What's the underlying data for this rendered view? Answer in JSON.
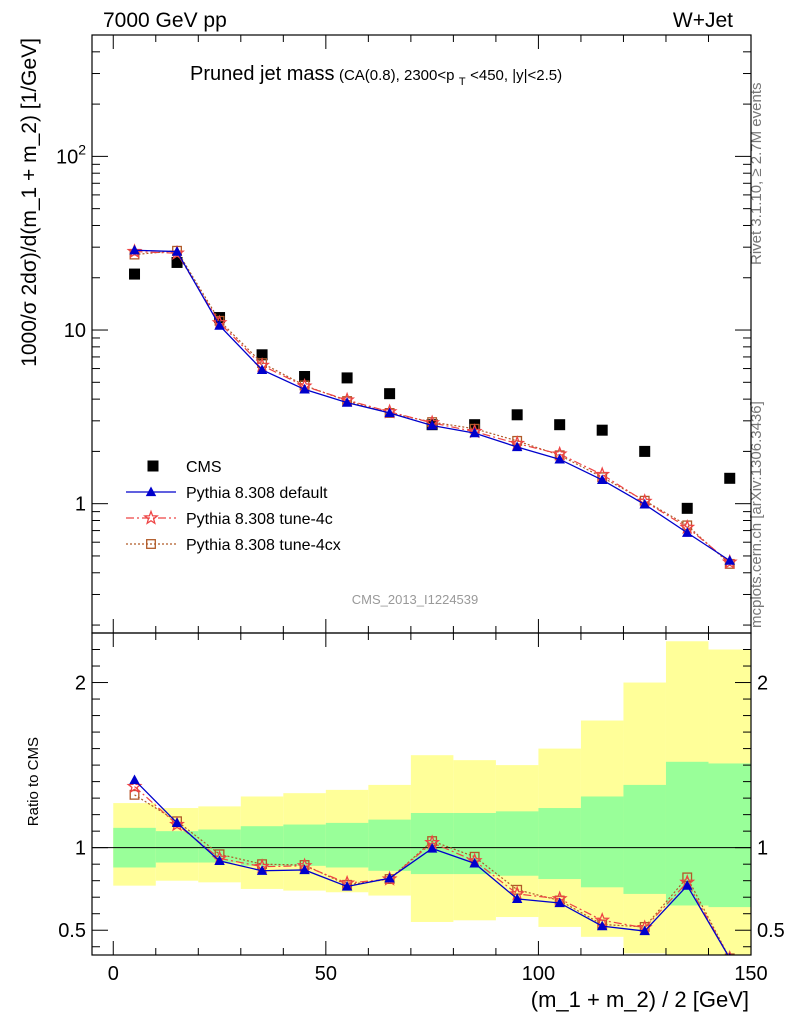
{
  "header": {
    "left": "7000 GeV pp",
    "right": "W+Jet"
  },
  "title": {
    "main": "Pruned jet mass",
    "sub_a": "(CA(0.8), 2300<p",
    "sub_sub": "T",
    "sub_b": "<450, |y|<2.5)"
  },
  "side": {
    "rivet": "Rivet 3.1.10, ≥ 2.7M events",
    "mcplots": "mcplots.cern.ch [arXiv:1306.3436]"
  },
  "analysis_id": "CMS_2013_I1224539",
  "colors": {
    "cms": "#000000",
    "default": "#0000cc",
    "tune4c": "#ee4444",
    "tune4cx": "#b05a28",
    "band_inner": "#99ff99",
    "band_outer": "#ffff99"
  },
  "chart_data": [
    {
      "type": "scatter",
      "panel": "main",
      "ylabel": "1000/σ 2dσ)/d(m_1 + m_2) [1/GeV]",
      "yscale": "log",
      "ylim": [
        0.18,
        500
      ],
      "xlim": [
        -5,
        150
      ],
      "yticks": [
        {
          "value": 100,
          "base": "10",
          "exp": "2"
        },
        {
          "value": 10,
          "base": "10",
          "exp": ""
        },
        {
          "value": 1,
          "base": "1",
          "exp": ""
        }
      ],
      "legend_position": "center-left",
      "legend": [
        {
          "key": "cms",
          "label": "CMS"
        },
        {
          "key": "default",
          "label": "Pythia 8.308 default"
        },
        {
          "key": "tune4c",
          "label": "Pythia 8.308 tune-4c"
        },
        {
          "key": "tune4cx",
          "label": "Pythia 8.308 tune-4cx"
        }
      ],
      "x": [
        5,
        15,
        25,
        35,
        45,
        55,
        65,
        75,
        85,
        95,
        105,
        115,
        125,
        135,
        145
      ],
      "series": [
        {
          "key": "cms",
          "values": [
            21,
            24.5,
            11.8,
            7.2,
            5.4,
            5.3,
            4.3,
            2.85,
            2.85,
            3.25,
            2.85,
            2.65,
            2.0,
            0.94,
            1.4
          ]
        },
        {
          "key": "default",
          "values": [
            28.8,
            28.3,
            10.6,
            5.9,
            4.55,
            3.82,
            3.33,
            2.82,
            2.55,
            2.12,
            1.8,
            1.37,
            0.99,
            0.68,
            0.47
          ]
        },
        {
          "key": "tune4c",
          "values": [
            28.3,
            27.7,
            11.0,
            6.25,
            4.75,
            3.95,
            3.38,
            2.92,
            2.6,
            2.22,
            1.93,
            1.47,
            1.03,
            0.73,
            0.46
          ]
        },
        {
          "key": "tune4cx",
          "values": [
            27.2,
            28.6,
            11.3,
            6.45,
            4.8,
            3.9,
            3.33,
            2.95,
            2.7,
            2.3,
            1.9,
            1.42,
            1.04,
            0.75,
            0.45
          ]
        }
      ]
    },
    {
      "type": "line",
      "panel": "ratio",
      "xlabel": "(m_1 + m_2) / 2 [GeV]",
      "ylabel": "Ratio to CMS",
      "ylim": [
        0.35,
        2.3
      ],
      "xlim": [
        -5,
        150
      ],
      "xticks": [
        0,
        50,
        100,
        150
      ],
      "yticks": [
        0.5,
        1,
        2
      ],
      "reference_line": 1,
      "bands": {
        "edges": [
          0,
          10,
          20,
          30,
          40,
          50,
          60,
          70,
          80,
          90,
          100,
          110,
          120,
          130,
          140,
          150
        ],
        "inner_low": [
          0.88,
          0.91,
          0.91,
          0.89,
          0.89,
          0.88,
          0.86,
          0.84,
          0.84,
          0.83,
          0.81,
          0.76,
          0.72,
          0.65,
          0.64
        ],
        "inner_high": [
          1.12,
          1.1,
          1.11,
          1.13,
          1.14,
          1.15,
          1.17,
          1.21,
          1.21,
          1.22,
          1.24,
          1.31,
          1.38,
          1.52,
          1.51
        ],
        "outer_low": [
          0.77,
          0.8,
          0.79,
          0.75,
          0.74,
          0.73,
          0.71,
          0.55,
          0.56,
          0.58,
          0.52,
          0.46,
          0.36,
          0.31,
          0.33
        ],
        "outer_high": [
          1.27,
          1.24,
          1.25,
          1.31,
          1.33,
          1.35,
          1.38,
          1.56,
          1.53,
          1.5,
          1.6,
          1.77,
          2.0,
          2.25,
          2.2
        ]
      },
      "x": [
        5,
        15,
        25,
        35,
        45,
        55,
        65,
        75,
        85,
        95,
        105,
        115,
        125,
        135,
        145
      ],
      "series": [
        {
          "key": "default",
          "values": [
            1.41,
            1.15,
            0.92,
            0.86,
            0.865,
            0.765,
            0.815,
            0.995,
            0.905,
            0.69,
            0.665,
            0.525,
            0.495,
            0.77,
            0.33
          ]
        },
        {
          "key": "tune4c",
          "values": [
            1.37,
            1.14,
            0.935,
            0.885,
            0.89,
            0.785,
            0.81,
            1.03,
            0.92,
            0.72,
            0.69,
            0.56,
            0.515,
            0.79,
            0.33
          ]
        },
        {
          "key": "tune4cx",
          "values": [
            1.32,
            1.16,
            0.96,
            0.9,
            0.895,
            0.775,
            0.81,
            1.04,
            0.945,
            0.745,
            0.68,
            0.535,
            0.52,
            0.82,
            0.33
          ]
        }
      ]
    }
  ]
}
